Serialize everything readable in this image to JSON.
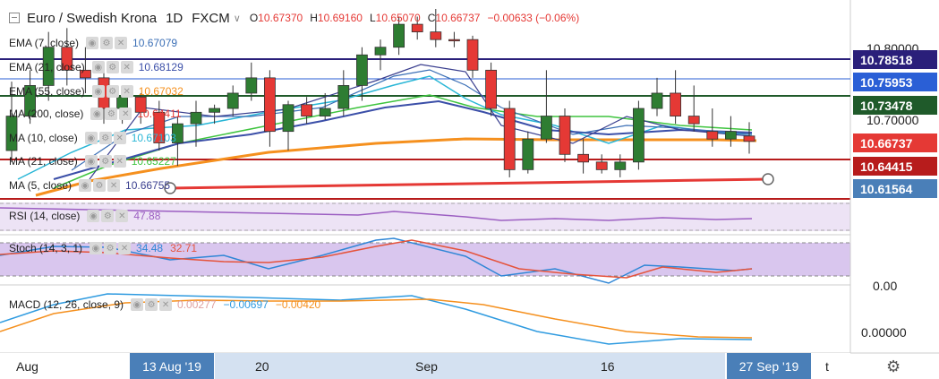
{
  "header": {
    "title": "Euro / Swedish Krona",
    "interval": "1D",
    "source": "FXCM",
    "ohlc": [
      {
        "k": "O",
        "v": "10.67370"
      },
      {
        "k": "H",
        "v": "10.69160"
      },
      {
        "k": "L",
        "v": "10.65070"
      },
      {
        "k": "C",
        "v": "10.66737"
      }
    ],
    "change": "−0.00633 (−0.06%)"
  },
  "indicators": [
    {
      "name": "EMA (7, close)",
      "value": "10.67079",
      "color": "#3b6fb6"
    },
    {
      "name": "EMA (21, close)",
      "value": "10.68129",
      "color": "#3b4fa8"
    },
    {
      "name": "EMA (55, close)",
      "value": "10.67032",
      "color": "#f5901e"
    },
    {
      "name": "MA (200, close)",
      "value": "10.64411",
      "color": "#e53935"
    },
    {
      "name": "MA (10, close)",
      "value": "10.67103",
      "color": "#29b6d6"
    },
    {
      "name": "MA (21, close)",
      "value": "10.65227",
      "color": "#3fc43f"
    },
    {
      "name": "MA (5, close)",
      "value": "10.66755",
      "color": "#3a3f8f"
    }
  ],
  "panes": {
    "rsi": {
      "name": "RSI (14, close)",
      "value": "47.88",
      "color": "#9c5fc2"
    },
    "stoch": {
      "name": "Stoch (14, 3, 1)",
      "k": "34.48",
      "d": "32.71",
      "kcolor": "#2f86d6",
      "dcolor": "#e5533b"
    },
    "macd": {
      "name": "MACD (12, 26, close, 9)",
      "hist": "0.00277",
      "macd": "−0.00697",
      "signal": "−0.00420",
      "hcolor": "#e0a0a0",
      "mcolor": "#2f9be0",
      "scolor": "#f5901e"
    }
  },
  "price_labels": [
    {
      "text": "10.78518",
      "color": "#2a1f7a"
    },
    {
      "text": "10.75953",
      "color": "#2a5fd6"
    },
    {
      "text": "10.73478",
      "color": "#1f5a2a"
    },
    {
      "text": "10.66737",
      "color": "#e53935"
    },
    {
      "text": "10.64415",
      "color": "#b71c1c"
    },
    {
      "text": "10.61564",
      "color": "#4a7fb8"
    }
  ],
  "axis_labels": {
    "p1": "10.80000",
    "p2": "10.70000",
    "stoch0": "0.00",
    "macd0": "0.00000"
  },
  "x_labels": [
    "Aug",
    "20",
    "Sep",
    "16",
    "t"
  ],
  "x_highlights": [
    "13 Aug '19",
    "27 Sep '19"
  ],
  "colors": {
    "up": "#2e7d32",
    "down": "#e53935",
    "trend": "#e53935",
    "rsi_band": "#ede3f5",
    "stoch_band": "#d9c6ee"
  },
  "chart_data": {
    "type": "candlestick",
    "instrument": "EUR/SEK",
    "candles_ohlc": [
      [
        10.655,
        10.745,
        10.64,
        10.7
      ],
      [
        10.7,
        10.76,
        10.69,
        10.74
      ],
      [
        10.74,
        10.81,
        10.72,
        10.79
      ],
      [
        10.79,
        10.815,
        10.74,
        10.76
      ],
      [
        10.76,
        10.79,
        10.73,
        10.75
      ],
      [
        10.75,
        10.76,
        10.69,
        10.71
      ],
      [
        10.71,
        10.73,
        10.69,
        10.725
      ],
      [
        10.725,
        10.73,
        10.69,
        10.705
      ],
      [
        10.705,
        10.72,
        10.655,
        10.665
      ],
      [
        10.665,
        10.7,
        10.635,
        10.69
      ],
      [
        10.69,
        10.72,
        10.66,
        10.705
      ],
      [
        10.705,
        10.715,
        10.69,
        10.71
      ],
      [
        10.71,
        10.74,
        10.7,
        10.73
      ],
      [
        10.73,
        10.77,
        10.72,
        10.75
      ],
      [
        10.75,
        10.76,
        10.66,
        10.68
      ],
      [
        10.68,
        10.72,
        10.655,
        10.715
      ],
      [
        10.715,
        10.725,
        10.69,
        10.7
      ],
      [
        10.7,
        10.73,
        10.695,
        10.71
      ],
      [
        10.71,
        10.76,
        10.7,
        10.74
      ],
      [
        10.74,
        10.79,
        10.72,
        10.78
      ],
      [
        10.78,
        10.8,
        10.76,
        10.79
      ],
      [
        10.79,
        10.83,
        10.78,
        10.82
      ],
      [
        10.82,
        10.83,
        10.8,
        10.81
      ],
      [
        10.81,
        10.84,
        10.79,
        10.8
      ],
      [
        10.8,
        10.81,
        10.79,
        10.799
      ],
      [
        10.8,
        10.805,
        10.75,
        10.76
      ],
      [
        10.76,
        10.77,
        10.7,
        10.71
      ],
      [
        10.71,
        10.72,
        10.62,
        10.63
      ],
      [
        10.63,
        10.68,
        10.625,
        10.67
      ],
      [
        10.67,
        10.76,
        10.665,
        10.7
      ],
      [
        10.7,
        10.71,
        10.64,
        10.65
      ],
      [
        10.65,
        10.67,
        10.625,
        10.64
      ],
      [
        10.64,
        10.65,
        10.625,
        10.63
      ],
      [
        10.63,
        10.65,
        10.62,
        10.64
      ],
      [
        10.64,
        10.72,
        10.63,
        10.71
      ],
      [
        10.71,
        10.75,
        10.7,
        10.73
      ],
      [
        10.73,
        10.76,
        10.69,
        10.7
      ],
      [
        10.7,
        10.74,
        10.68,
        10.69
      ],
      [
        10.68,
        10.71,
        10.66,
        10.67
      ],
      [
        10.67,
        10.7,
        10.66,
        10.68
      ],
      [
        10.674,
        10.692,
        10.651,
        10.667
      ]
    ]
  }
}
